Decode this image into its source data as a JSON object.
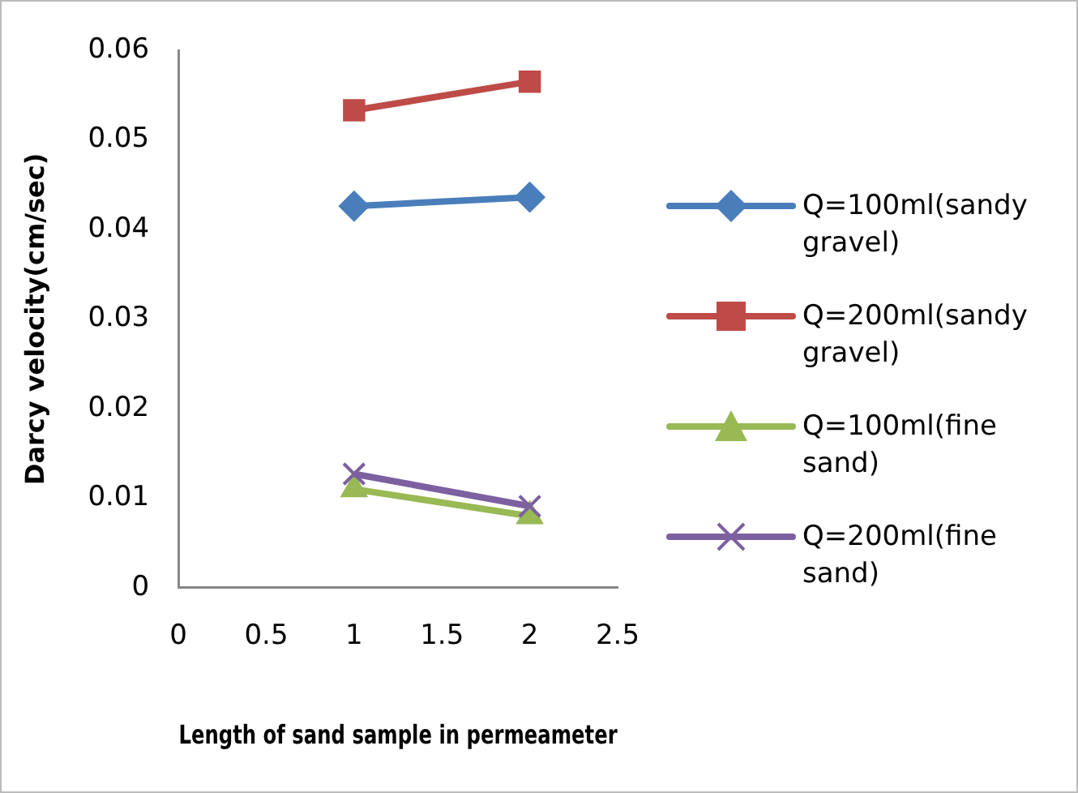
{
  "chart_data": {
    "type": "line",
    "xlabel": "Length of sand sample in permeameter",
    "ylabel": "Darcy velocity(cm/sec)",
    "x": [
      1,
      2
    ],
    "series": [
      {
        "name": "Q=100ml(sandy gravel)",
        "color": "#4a7ebb",
        "values": [
          0.0426,
          0.0436
        ],
        "marker": "diamond"
      },
      {
        "name": "Q=200ml(sandy gravel)",
        "color": "#be4b48",
        "values": [
          0.0533,
          0.0565
        ],
        "marker": "square"
      },
      {
        "name": "Q=100ml(fine sand)",
        "color": "#98b954",
        "values": [
          0.011,
          0.008
        ],
        "marker": "triangle"
      },
      {
        "name": "Q=200ml(fine sand)",
        "color": "#7d60a0",
        "values": [
          0.0127,
          0.0091
        ],
        "marker": "cross"
      }
    ],
    "xlim": [
      0,
      2.5
    ],
    "xticks": [
      0,
      0.5,
      1,
      1.5,
      2,
      2.5
    ],
    "ylim": [
      0,
      0.06
    ],
    "yticks": [
      0,
      0.01,
      0.02,
      0.03,
      0.04,
      0.05,
      0.06
    ],
    "grid": false,
    "legend": "right"
  }
}
